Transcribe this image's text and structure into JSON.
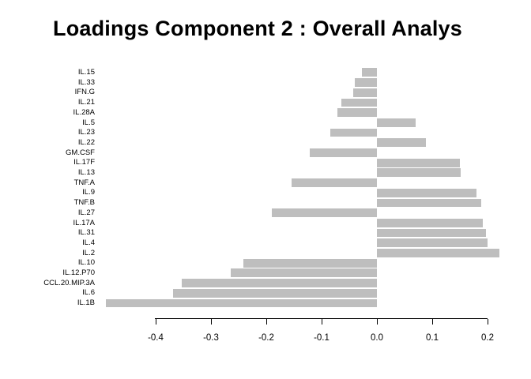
{
  "title": "Loadings Component 2 : Overall Analys",
  "chart_data": {
    "type": "bar",
    "orientation": "horizontal",
    "title": "Loadings Component 2 : Overall Analys",
    "xlabel": "",
    "ylabel": "",
    "grid": false,
    "legend": false,
    "bar_color": "#BEBEBE",
    "text_color": "#000000",
    "categories": [
      "IL.15",
      "IL.33",
      "IFN.G",
      "IL.21",
      "IL.28A",
      "IL.5",
      "IL.23",
      "IL.22",
      "GM.CSF",
      "IL.17F",
      "IL.13",
      "TNF.A",
      "IL.9",
      "TNF.B",
      "IL.27",
      "IL.17A",
      "IL.31",
      "IL.4",
      "IL.2",
      "IL.10",
      "IL.12.P70",
      "CCL.20.MIP.3A",
      "IL.6",
      "IL.1B"
    ],
    "values": [
      -0.027,
      -0.04,
      -0.043,
      -0.065,
      -0.071,
      0.07,
      -0.084,
      0.088,
      -0.122,
      0.15,
      0.151,
      -0.155,
      0.18,
      0.189,
      -0.19,
      0.191,
      0.197,
      0.2,
      0.222,
      -0.242,
      -0.265,
      -0.353,
      -0.369,
      -0.49
    ],
    "x_ticks": [
      "-0.4",
      "-0.3",
      "-0.2",
      "-0.1",
      "0.0",
      "0.1",
      "0.2"
    ],
    "x_tick_values": [
      -0.4,
      -0.3,
      -0.2,
      -0.1,
      0.0,
      0.1,
      0.2
    ],
    "xlim": [
      -0.49,
      0.23
    ]
  }
}
